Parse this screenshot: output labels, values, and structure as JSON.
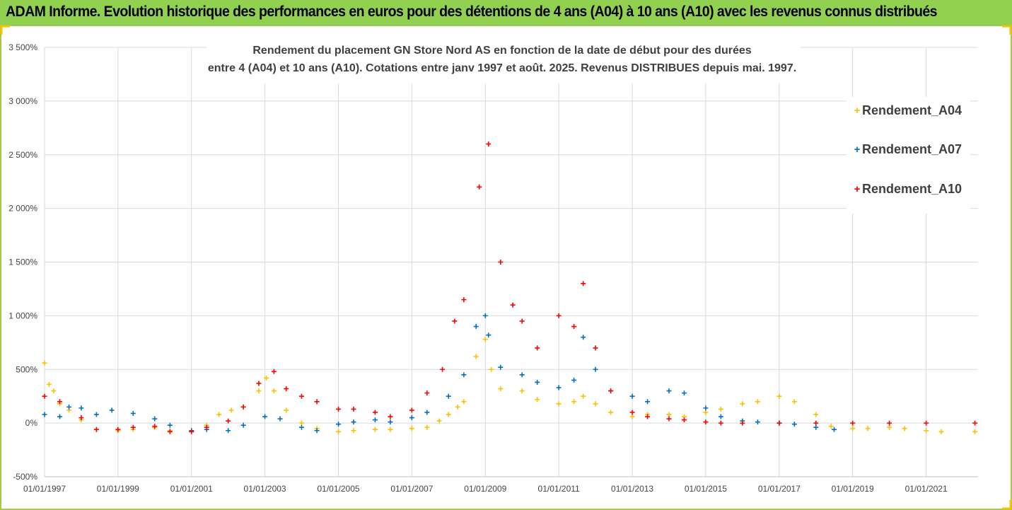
{
  "banner": {
    "text": "ADAM Informe. Evolution historique des performances en euros pour des détentions de 4 ans (A04) à 10 ans (A10) avec les revenus connus distribués"
  },
  "colors": {
    "banner": "#92d050",
    "a04": "#ffc000",
    "a07": "#0070c0",
    "a10": "#ff0000",
    "grid": "#d9d9d9"
  },
  "chart_data": {
    "type": "scatter",
    "title_line1": "Rendement du placement GN Store Nord AS en fonction de la date de début pour des durées",
    "title_line2": "entre 4 (A04) et 10 ans (A10). Cotations entre janv 1997 et août. 2025. Revenus DISTRIBUES depuis mai. 1997.",
    "xlabel": "",
    "ylabel": "",
    "ylim": [
      -500,
      3500
    ],
    "y_ticks": [
      "3 500%",
      "3 000%",
      "2 500%",
      "2 000%",
      "1 500%",
      "1 000%",
      "500%",
      "0%",
      "-500%"
    ],
    "x_ticks": [
      "01/01/1997",
      "01/01/1999",
      "01/01/2001",
      "01/01/2003",
      "01/01/2005",
      "01/01/2007",
      "01/01/2009",
      "01/01/2011",
      "01/01/2013",
      "01/01/2015",
      "01/01/2017",
      "01/01/2019",
      "01/01/2021"
    ],
    "x_range": [
      "1997-01-01",
      "2022-06-01"
    ],
    "grid": true,
    "legend_position": "right",
    "series": [
      {
        "name": "Rendement_A04",
        "color": "#ffc000",
        "points": [
          [
            "1997-01-01",
            560
          ],
          [
            "1997-02-15",
            360
          ],
          [
            "1997-04-01",
            300
          ],
          [
            "1997-06-01",
            180
          ],
          [
            "1997-09-01",
            120
          ],
          [
            "1998-01-01",
            30
          ],
          [
            "1998-06-01",
            -60
          ],
          [
            "1999-01-01",
            -70
          ],
          [
            "1999-06-01",
            -60
          ],
          [
            "2000-01-01",
            -40
          ],
          [
            "2000-06-01",
            -70
          ],
          [
            "2001-01-01",
            -80
          ],
          [
            "2001-06-01",
            -20
          ],
          [
            "2001-10-01",
            80
          ],
          [
            "2002-02-01",
            120
          ],
          [
            "2002-06-01",
            150
          ],
          [
            "2002-11-01",
            300
          ],
          [
            "2003-01-15",
            420
          ],
          [
            "2003-04-01",
            300
          ],
          [
            "2003-08-01",
            120
          ],
          [
            "2004-01-01",
            0
          ],
          [
            "2004-06-01",
            -50
          ],
          [
            "2005-01-01",
            -80
          ],
          [
            "2005-06-01",
            -70
          ],
          [
            "2006-01-01",
            -60
          ],
          [
            "2006-06-01",
            -60
          ],
          [
            "2007-01-01",
            -50
          ],
          [
            "2007-06-01",
            -40
          ],
          [
            "2007-10-01",
            20
          ],
          [
            "2008-01-01",
            80
          ],
          [
            "2008-04-01",
            150
          ],
          [
            "2008-06-01",
            200
          ],
          [
            "2008-10-01",
            620
          ],
          [
            "2009-01-01",
            780
          ],
          [
            "2009-03-01",
            500
          ],
          [
            "2009-06-01",
            320
          ],
          [
            "2010-01-01",
            300
          ],
          [
            "2010-06-01",
            220
          ],
          [
            "2011-01-01",
            180
          ],
          [
            "2011-06-01",
            200
          ],
          [
            "2011-09-01",
            250
          ],
          [
            "2012-01-01",
            180
          ],
          [
            "2012-06-01",
            100
          ],
          [
            "2013-01-01",
            60
          ],
          [
            "2013-06-01",
            80
          ],
          [
            "2014-01-01",
            80
          ],
          [
            "2014-06-01",
            60
          ],
          [
            "2015-01-01",
            100
          ],
          [
            "2015-06-01",
            130
          ],
          [
            "2016-01-01",
            180
          ],
          [
            "2016-06-01",
            200
          ],
          [
            "2017-01-01",
            250
          ],
          [
            "2017-06-01",
            200
          ],
          [
            "2018-01-01",
            80
          ],
          [
            "2018-06-01",
            -30
          ],
          [
            "2019-01-01",
            -50
          ],
          [
            "2019-06-01",
            -50
          ],
          [
            "2020-01-01",
            -40
          ],
          [
            "2020-06-01",
            -50
          ],
          [
            "2021-01-01",
            -70
          ],
          [
            "2021-06-01",
            -80
          ],
          [
            "2022-05-01",
            -80
          ]
        ]
      },
      {
        "name": "Rendement_A07",
        "color": "#0070c0",
        "points": [
          [
            "1997-01-01",
            80
          ],
          [
            "1997-06-01",
            60
          ],
          [
            "1997-09-01",
            150
          ],
          [
            "1998-01-01",
            140
          ],
          [
            "1998-06-01",
            80
          ],
          [
            "1998-11-01",
            120
          ],
          [
            "1999-06-01",
            90
          ],
          [
            "2000-01-01",
            40
          ],
          [
            "2000-06-01",
            -20
          ],
          [
            "2001-01-01",
            -70
          ],
          [
            "2001-06-01",
            -60
          ],
          [
            "2002-01-01",
            -70
          ],
          [
            "2002-06-01",
            -20
          ],
          [
            "2003-01-01",
            60
          ],
          [
            "2003-06-01",
            40
          ],
          [
            "2004-01-01",
            -40
          ],
          [
            "2004-06-01",
            -70
          ],
          [
            "2005-01-01",
            -10
          ],
          [
            "2005-06-01",
            10
          ],
          [
            "2006-01-01",
            30
          ],
          [
            "2006-06-01",
            10
          ],
          [
            "2007-01-01",
            50
          ],
          [
            "2007-06-01",
            100
          ],
          [
            "2008-01-01",
            250
          ],
          [
            "2008-06-01",
            450
          ],
          [
            "2008-10-01",
            900
          ],
          [
            "2009-01-01",
            1000
          ],
          [
            "2009-02-01",
            820
          ],
          [
            "2009-06-01",
            520
          ],
          [
            "2010-01-01",
            450
          ],
          [
            "2010-06-01",
            380
          ],
          [
            "2011-01-01",
            330
          ],
          [
            "2011-06-01",
            400
          ],
          [
            "2011-09-01",
            800
          ],
          [
            "2012-01-01",
            500
          ],
          [
            "2012-06-01",
            300
          ],
          [
            "2013-01-01",
            250
          ],
          [
            "2013-06-01",
            200
          ],
          [
            "2014-01-01",
            300
          ],
          [
            "2014-06-01",
            280
          ],
          [
            "2015-01-01",
            140
          ],
          [
            "2015-06-01",
            60
          ],
          [
            "2016-01-01",
            20
          ],
          [
            "2016-06-01",
            10
          ],
          [
            "2017-01-01",
            0
          ],
          [
            "2017-06-01",
            -10
          ],
          [
            "2018-01-01",
            -40
          ],
          [
            "2018-07-01",
            -60
          ]
        ]
      },
      {
        "name": "Rendement_A10",
        "color": "#ff0000",
        "points": [
          [
            "1997-01-01",
            250
          ],
          [
            "1997-06-01",
            200
          ],
          [
            "1998-01-01",
            50
          ],
          [
            "1998-06-01",
            -60
          ],
          [
            "1999-01-01",
            -60
          ],
          [
            "1999-06-01",
            -40
          ],
          [
            "2000-01-01",
            -30
          ],
          [
            "2000-06-01",
            -80
          ],
          [
            "2001-01-01",
            -80
          ],
          [
            "2001-06-01",
            -40
          ],
          [
            "2002-01-01",
            20
          ],
          [
            "2002-06-01",
            150
          ],
          [
            "2002-11-01",
            370
          ],
          [
            "2003-04-01",
            480
          ],
          [
            "2003-08-01",
            320
          ],
          [
            "2004-01-01",
            250
          ],
          [
            "2004-06-01",
            200
          ],
          [
            "2005-01-01",
            130
          ],
          [
            "2005-06-01",
            130
          ],
          [
            "2006-01-01",
            100
          ],
          [
            "2006-06-01",
            60
          ],
          [
            "2007-01-01",
            120
          ],
          [
            "2007-06-01",
            280
          ],
          [
            "2007-11-01",
            500
          ],
          [
            "2008-03-01",
            950
          ],
          [
            "2008-06-01",
            1150
          ],
          [
            "2008-11-01",
            2200
          ],
          [
            "2009-02-01",
            2600
          ],
          [
            "2009-06-01",
            1500
          ],
          [
            "2009-10-01",
            1100
          ],
          [
            "2010-01-01",
            950
          ],
          [
            "2010-06-01",
            700
          ],
          [
            "2011-01-01",
            1000
          ],
          [
            "2011-06-01",
            900
          ],
          [
            "2011-09-01",
            1300
          ],
          [
            "2012-01-01",
            700
          ],
          [
            "2012-06-01",
            300
          ],
          [
            "2013-01-01",
            100
          ],
          [
            "2013-06-01",
            60
          ],
          [
            "2014-01-01",
            40
          ],
          [
            "2014-06-01",
            30
          ],
          [
            "2015-01-01",
            10
          ],
          [
            "2015-06-01",
            0
          ],
          [
            "2016-01-01",
            0
          ],
          [
            "2017-01-01",
            0
          ],
          [
            "2018-01-01",
            0
          ],
          [
            "2019-01-01",
            0
          ],
          [
            "2020-01-01",
            0
          ],
          [
            "2021-01-01",
            0
          ],
          [
            "2022-05-01",
            0
          ]
        ]
      }
    ]
  }
}
